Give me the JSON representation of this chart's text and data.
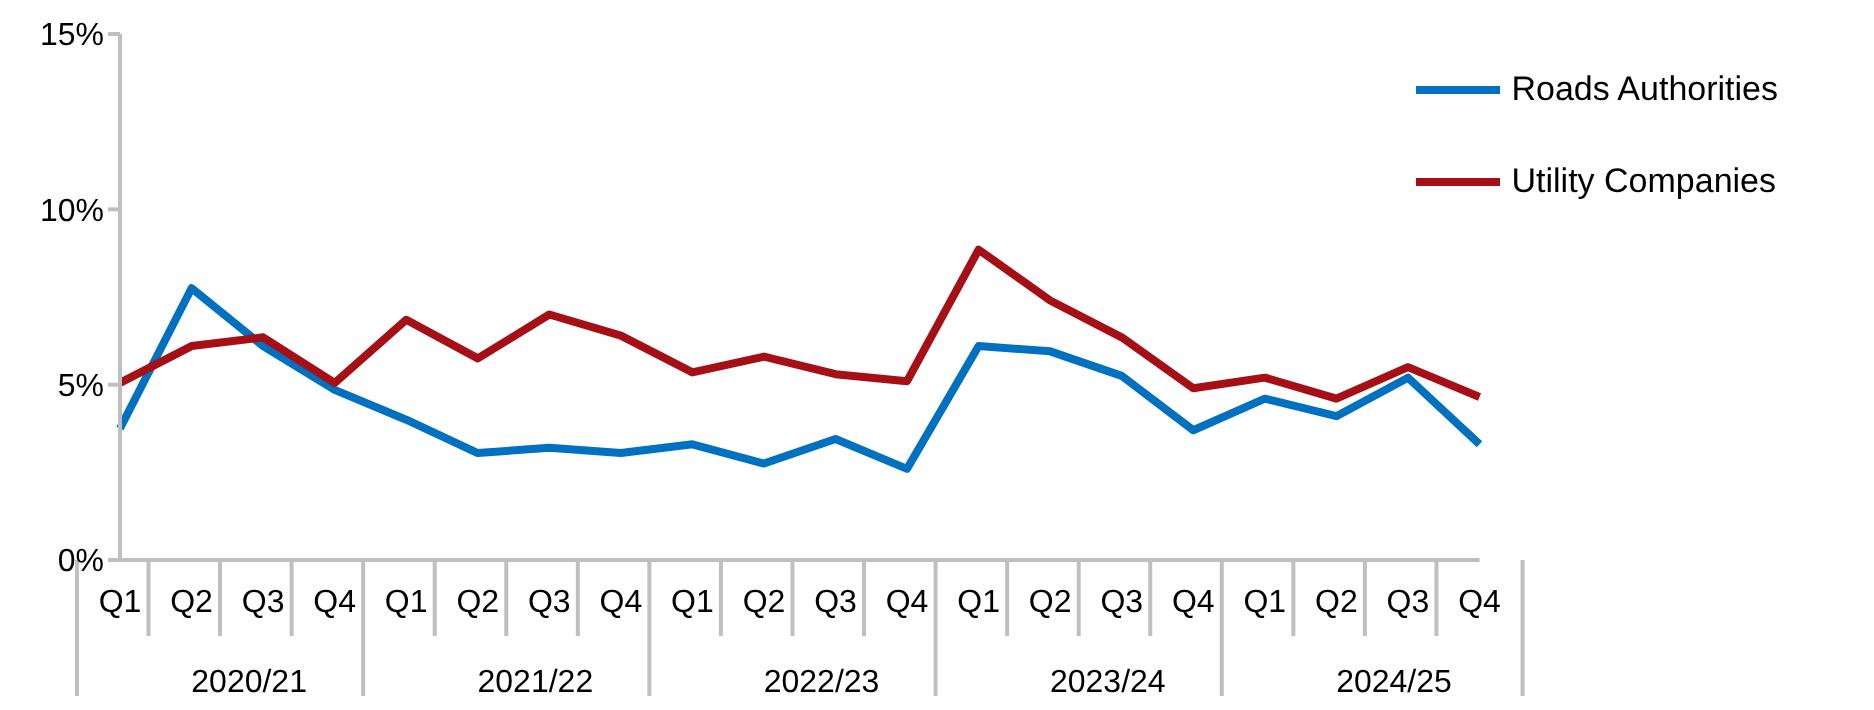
{
  "chart_data": {
    "type": "line",
    "categories": [
      "Q1",
      "Q2",
      "Q3",
      "Q4",
      "Q1",
      "Q2",
      "Q3",
      "Q4",
      "Q1",
      "Q2",
      "Q3",
      "Q4",
      "Q1",
      "Q2",
      "Q3",
      "Q4",
      "Q1",
      "Q2",
      "Q3",
      "Q4"
    ],
    "annotations": [
      "2020/21",
      "2021/22",
      "2022/23",
      "2023/24",
      "2024/25"
    ],
    "series": [
      {
        "name": "Roads Authorities",
        "color": "#0070c0",
        "values": [
          3.75,
          7.75,
          6.1,
          4.85,
          4.0,
          3.05,
          3.2,
          3.05,
          3.3,
          2.75,
          3.45,
          2.6,
          6.1,
          5.95,
          5.25,
          3.7,
          4.6,
          4.1,
          5.2,
          3.3
        ]
      },
      {
        "name": "Utility Companies",
        "color": "#a50f15",
        "values": [
          5.05,
          6.1,
          6.35,
          5.05,
          6.85,
          5.75,
          7.0,
          6.4,
          5.35,
          5.8,
          5.3,
          5.1,
          8.85,
          7.4,
          6.35,
          4.9,
          5.2,
          4.6,
          5.5,
          4.65
        ]
      }
    ],
    "ylim": [
      0,
      15
    ],
    "yticks": [
      {
        "value": 0,
        "label": "0%"
      },
      {
        "value": 5,
        "label": "5%"
      },
      {
        "value": 10,
        "label": "10%"
      },
      {
        "value": 15,
        "label": "15%"
      }
    ],
    "grid": false,
    "legend": "top right",
    "marker": "none",
    "line_style": "solid"
  }
}
